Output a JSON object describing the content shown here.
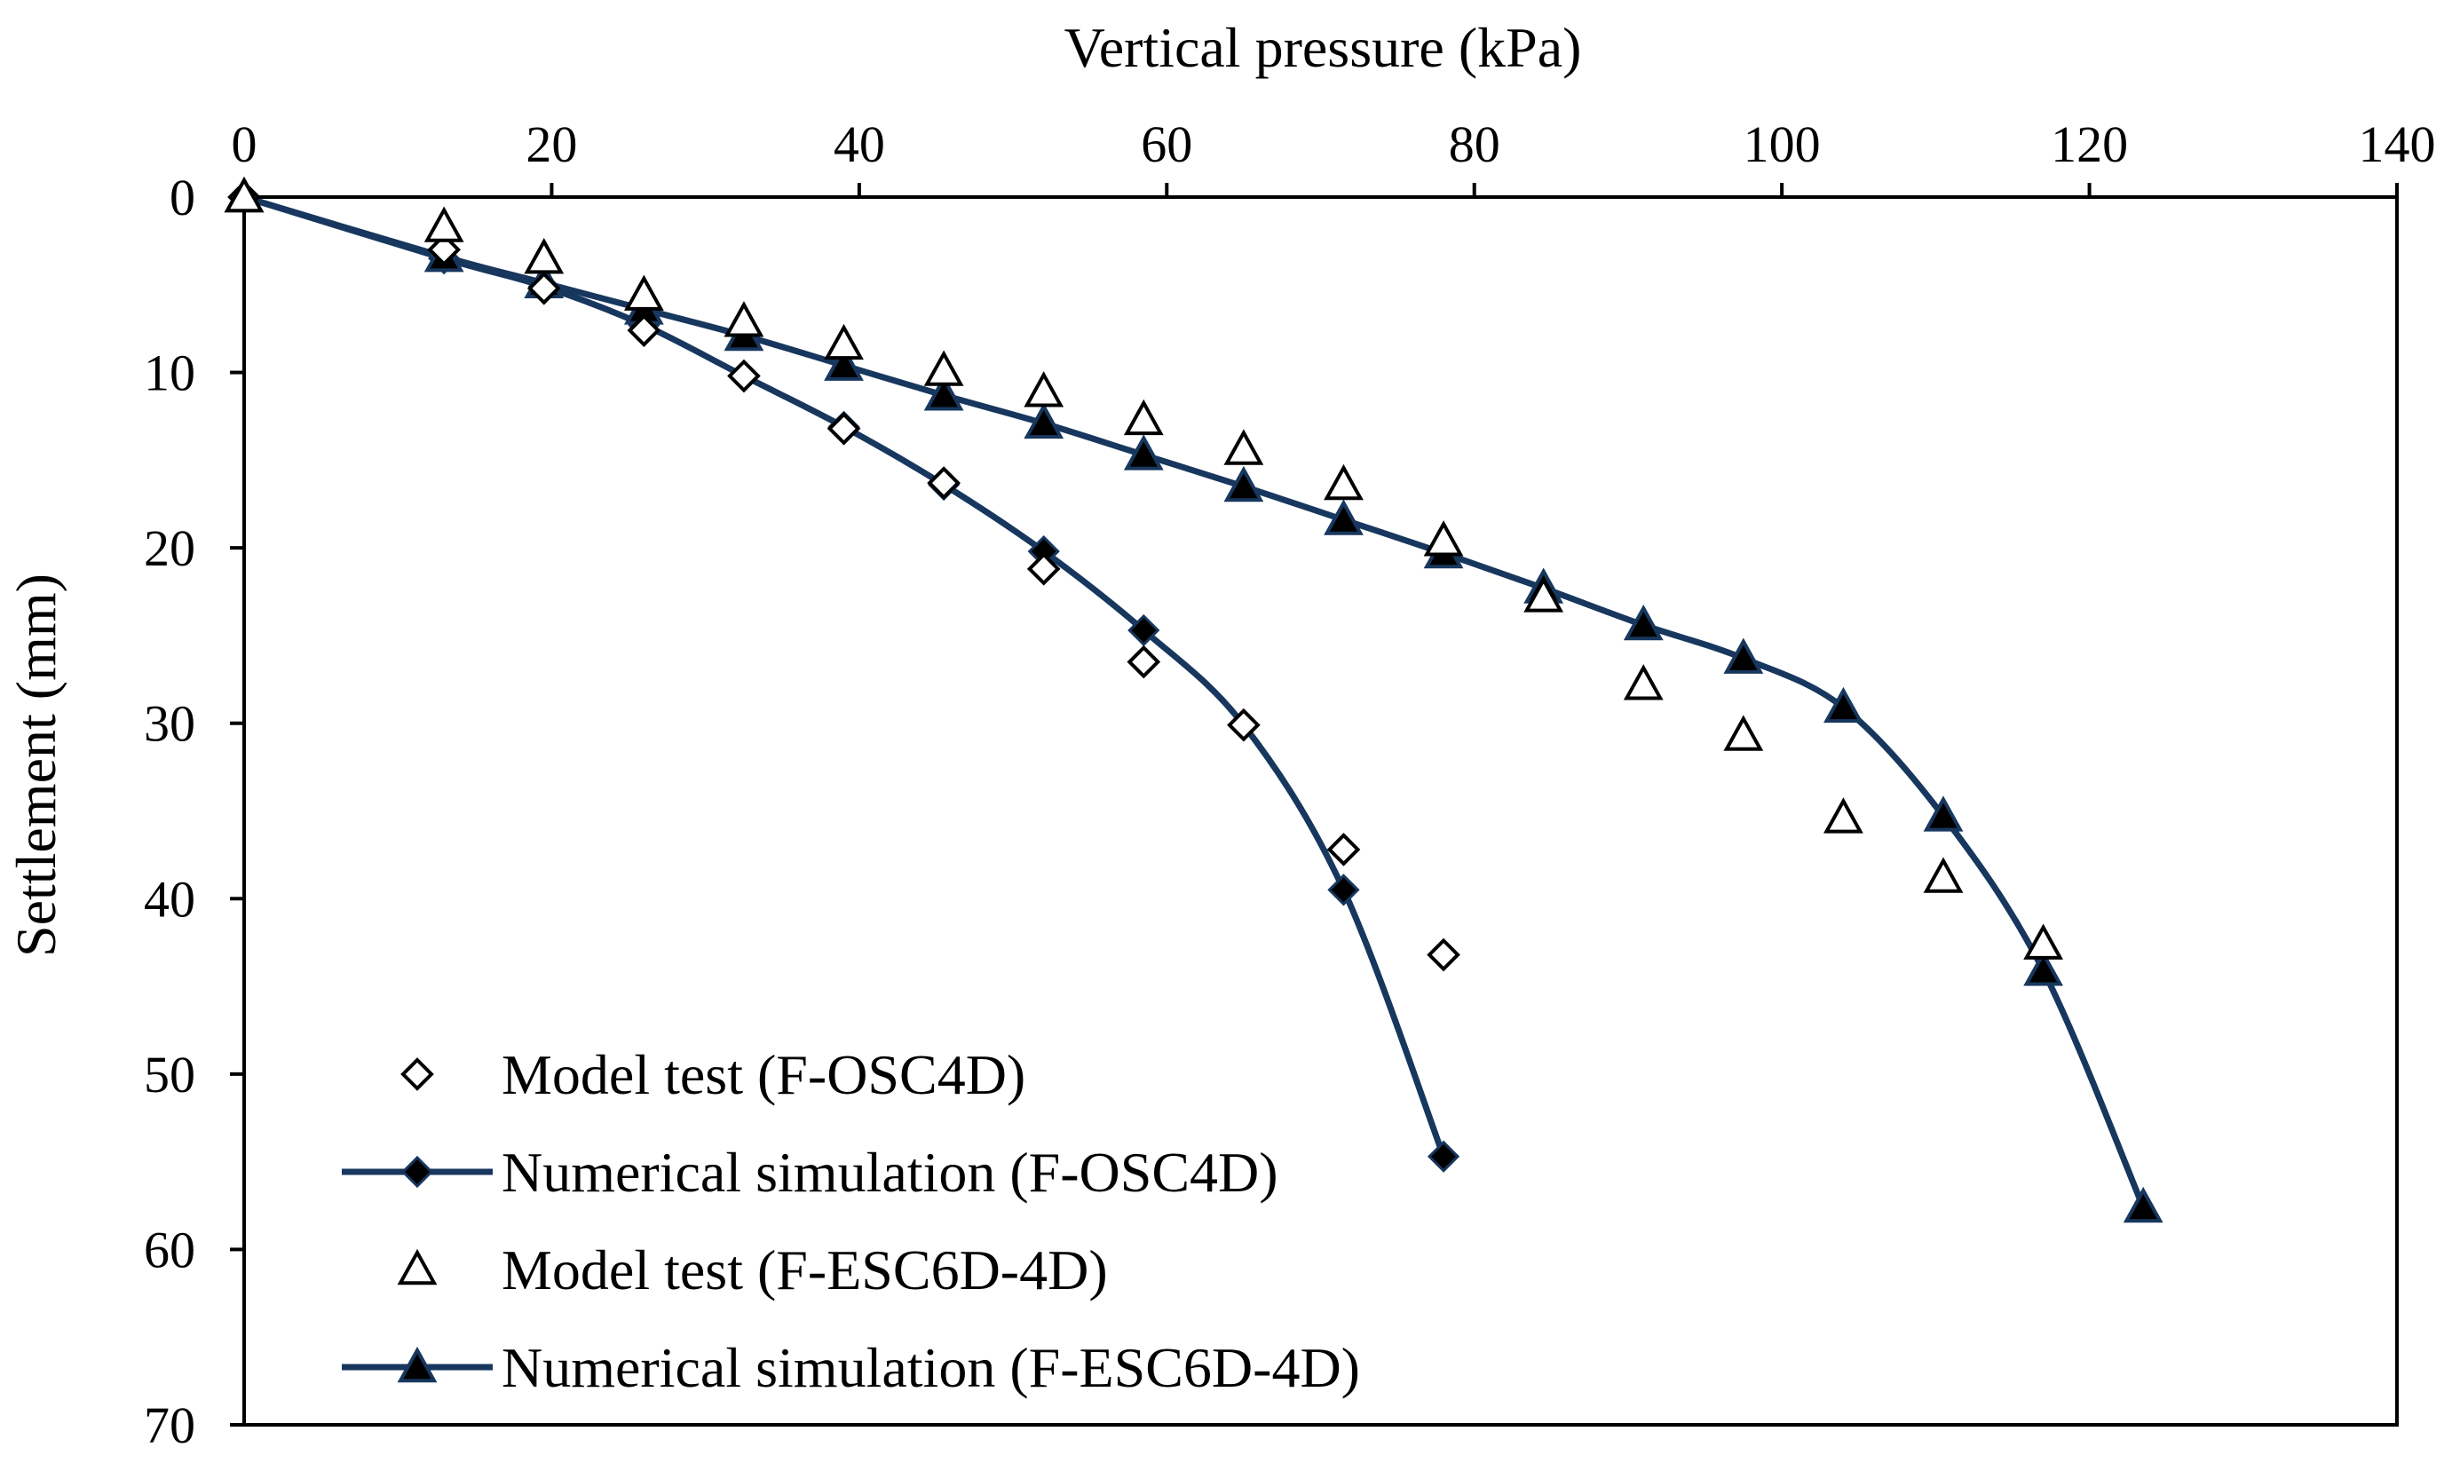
{
  "chart_data": {
    "type": "line",
    "title": "",
    "xlabel": "Vertical pressure (kPa)",
    "ylabel": "Settlement (mm)",
    "xlim": [
      0,
      140
    ],
    "ylim": [
      0,
      70
    ],
    "x_axis_position": "top",
    "y_axis_inverted": true,
    "grid": false,
    "x_ticks": [
      "0",
      "20",
      "40",
      "60",
      "80",
      "100",
      "120",
      "140"
    ],
    "y_ticks": [
      "0",
      "10",
      "20",
      "30",
      "40",
      "50",
      "60",
      "70"
    ],
    "legend_position": "bottom-left",
    "series": [
      {
        "name": "Model test (F-OSC4D)",
        "style": "markers",
        "marker": "diamond-open",
        "color": "#000000",
        "x": [
          0,
          13,
          19.5,
          26,
          32.5,
          39,
          45.5,
          52,
          58.5,
          65,
          71.5,
          78
        ],
        "y": [
          0,
          3,
          5.2,
          7.6,
          10.2,
          13.2,
          16.3,
          21.2,
          26.5,
          30.1,
          37.2,
          43.2
        ]
      },
      {
        "name": "Numerical simulation (F-OSC4D)",
        "style": "line-markers",
        "marker": "diamond-filled",
        "color": "#17375e",
        "x": [
          0,
          13,
          19.5,
          26,
          32.5,
          39,
          45.5,
          52,
          58.5,
          65,
          71.5,
          78
        ],
        "y": [
          0,
          3.5,
          5.1,
          7.3,
          10.2,
          13.1,
          16.4,
          20.2,
          24.7,
          30.1,
          39.5,
          54.7
        ]
      },
      {
        "name": "Model test (F-ESC6D-4D)",
        "style": "markers",
        "marker": "triangle-open",
        "color": "#000000",
        "x": [
          0,
          13,
          19.5,
          26,
          32.5,
          39,
          45.5,
          52,
          58.5,
          65,
          71.5,
          78,
          84.5,
          91,
          97.5,
          104,
          110.5,
          117
        ],
        "y": [
          0,
          1.7,
          3.5,
          5.6,
          7.1,
          8.4,
          9.9,
          11.1,
          12.7,
          14.4,
          16.4,
          19.6,
          22.8,
          27.8,
          30.7,
          35.4,
          38.8,
          42.6
        ]
      },
      {
        "name": "Numerical simulation (F-ESC6D-4D)",
        "style": "line-markers",
        "marker": "triangle-filled",
        "color": "#17375e",
        "x": [
          0,
          13,
          19.5,
          26,
          32.5,
          39,
          45.5,
          52,
          58.5,
          65,
          71.5,
          78,
          84.5,
          91,
          97.5,
          104,
          110.5,
          117,
          123.5
        ],
        "y": [
          0,
          3.4,
          4.9,
          6.4,
          7.9,
          9.6,
          11.3,
          12.9,
          14.7,
          16.5,
          18.4,
          20.3,
          22.3,
          24.4,
          26.3,
          29.1,
          35.3,
          44.1,
          57.6
        ]
      }
    ]
  }
}
